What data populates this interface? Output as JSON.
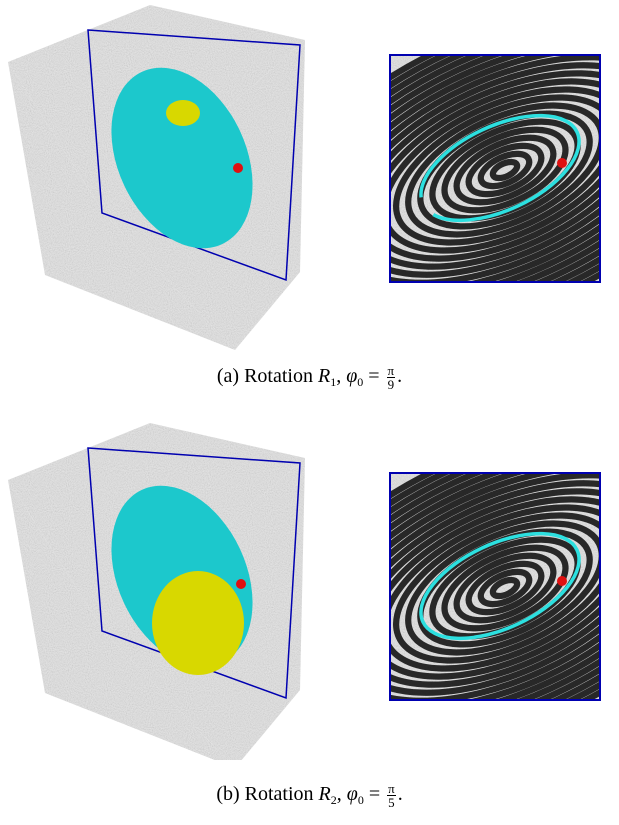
{
  "panels": [
    {
      "caption": {
        "label": "(a) Rotation",
        "symbol": "R",
        "symbol_sub": "1",
        "separator": ",",
        "angle": "φ",
        "angle_sub": "0",
        "relation": "=",
        "numerator": "π",
        "denominator": "9",
        "end": "."
      }
    },
    {
      "caption": {
        "label": "(b) Rotation",
        "symbol": "R",
        "symbol_sub": "2",
        "separator": ",",
        "angle": "φ",
        "angle_sub": "0",
        "relation": "=",
        "numerator": "π",
        "denominator": "5",
        "end": "."
      }
    }
  ]
}
